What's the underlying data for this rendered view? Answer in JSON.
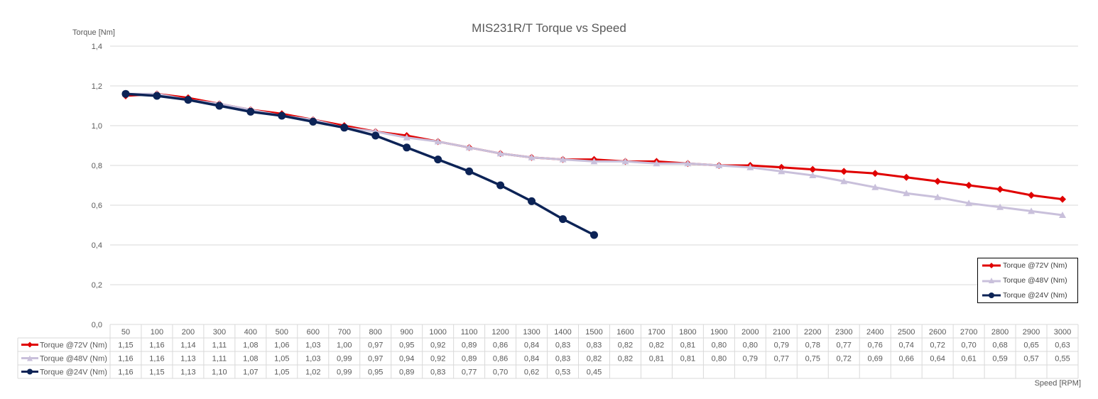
{
  "chart_data": {
    "type": "line",
    "title": "MIS231R/T Torque vs Speed",
    "xlabel": "Speed [RPM]",
    "ylabel": "Torque [Nm]",
    "ylim": [
      0,
      1.4
    ],
    "yticks": [
      "0,0",
      "0,2",
      "0,4",
      "0,6",
      "0,8",
      "1,0",
      "1,2",
      "1,4"
    ],
    "ytick_values": [
      0,
      0.2,
      0.4,
      0.6,
      0.8,
      1.0,
      1.2,
      1.4
    ],
    "grid": true,
    "legend_position": "bottom-right",
    "categories": [
      "50",
      "100",
      "200",
      "300",
      "400",
      "500",
      "600",
      "700",
      "800",
      "900",
      "1000",
      "1100",
      "1200",
      "1300",
      "1400",
      "1500",
      "1600",
      "1700",
      "1800",
      "1900",
      "2000",
      "2100",
      "2200",
      "2300",
      "2400",
      "2500",
      "2600",
      "2700",
      "2800",
      "2900",
      "3000"
    ],
    "series": [
      {
        "name": "Torque @72V (Nm)",
        "color": "#e00000",
        "marker": "diamond",
        "values": [
          1.15,
          1.16,
          1.14,
          1.11,
          1.08,
          1.06,
          1.03,
          1.0,
          0.97,
          0.95,
          0.92,
          0.89,
          0.86,
          0.84,
          0.83,
          0.83,
          0.82,
          0.82,
          0.81,
          0.8,
          0.8,
          0.79,
          0.78,
          0.77,
          0.76,
          0.74,
          0.72,
          0.7,
          0.68,
          0.65,
          0.63
        ],
        "labels": [
          "1,15",
          "1,16",
          "1,14",
          "1,11",
          "1,08",
          "1,06",
          "1,03",
          "1,00",
          "0,97",
          "0,95",
          "0,92",
          "0,89",
          "0,86",
          "0,84",
          "0,83",
          "0,83",
          "0,82",
          "0,82",
          "0,81",
          "0,80",
          "0,80",
          "0,79",
          "0,78",
          "0,77",
          "0,76",
          "0,74",
          "0,72",
          "0,70",
          "0,68",
          "0,65",
          "0,63"
        ]
      },
      {
        "name": "Torque @48V (Nm)",
        "color": "#c9c0db",
        "marker": "triangle",
        "values": [
          1.16,
          1.16,
          1.13,
          1.11,
          1.08,
          1.05,
          1.03,
          0.99,
          0.97,
          0.94,
          0.92,
          0.89,
          0.86,
          0.84,
          0.83,
          0.82,
          0.82,
          0.81,
          0.81,
          0.8,
          0.79,
          0.77,
          0.75,
          0.72,
          0.69,
          0.66,
          0.64,
          0.61,
          0.59,
          0.57,
          0.55
        ],
        "labels": [
          "1,16",
          "1,16",
          "1,13",
          "1,11",
          "1,08",
          "1,05",
          "1,03",
          "0,99",
          "0,97",
          "0,94",
          "0,92",
          "0,89",
          "0,86",
          "0,84",
          "0,83",
          "0,82",
          "0,82",
          "0,81",
          "0,81",
          "0,80",
          "0,79",
          "0,77",
          "0,75",
          "0,72",
          "0,69",
          "0,66",
          "0,64",
          "0,61",
          "0,59",
          "0,57",
          "0,55"
        ]
      },
      {
        "name": "Torque @24V (Nm)",
        "color": "#0c2356",
        "marker": "circle",
        "values": [
          1.16,
          1.15,
          1.13,
          1.1,
          1.07,
          1.05,
          1.02,
          0.99,
          0.95,
          0.89,
          0.83,
          0.77,
          0.7,
          0.62,
          0.53,
          0.45,
          null,
          null,
          null,
          null,
          null,
          null,
          null,
          null,
          null,
          null,
          null,
          null,
          null,
          null,
          null
        ],
        "labels": [
          "1,16",
          "1,15",
          "1,13",
          "1,10",
          "1,07",
          "1,05",
          "1,02",
          "0,99",
          "0,95",
          "0,89",
          "0,83",
          "0,77",
          "0,70",
          "0,62",
          "0,53",
          "0,45",
          "",
          "",
          "",
          "",
          "",
          "",
          "",
          "",
          "",
          "",
          "",
          "",
          "",
          "",
          ""
        ]
      }
    ]
  }
}
